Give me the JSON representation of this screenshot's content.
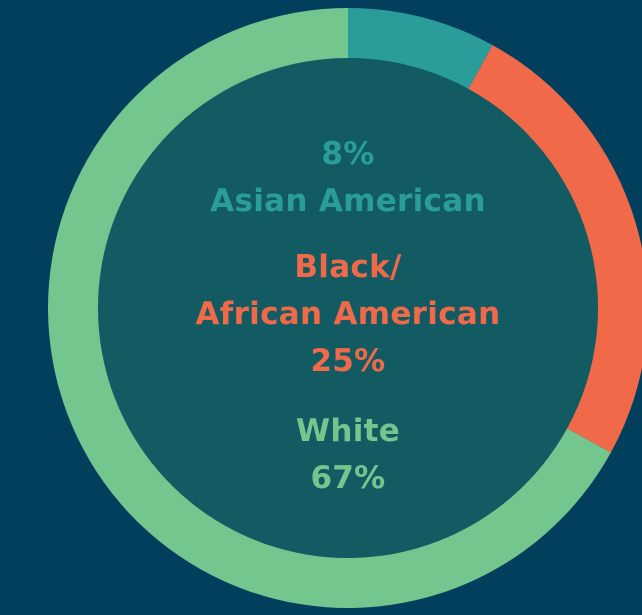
{
  "chart_data": {
    "type": "donut",
    "categories": [
      "Asian American",
      "Black/\nAfrican American",
      "White"
    ],
    "values": [
      8,
      25,
      67
    ],
    "value_labels": [
      "8%",
      "25%",
      "67%"
    ],
    "colors": [
      "#2a9d9a",
      "#f06a4a",
      "#72c68e"
    ]
  }
}
